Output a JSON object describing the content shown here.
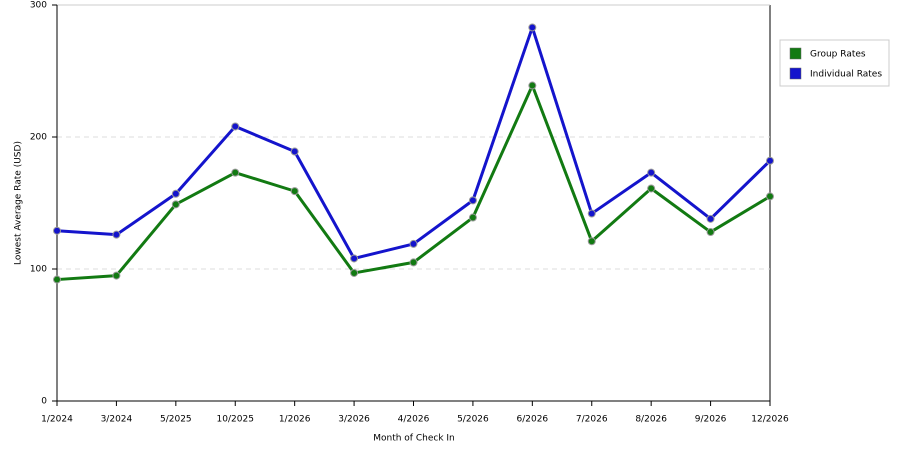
{
  "chart_data": {
    "type": "line",
    "x_label": "Month of Check In",
    "y_label": "Lowest Average Rate (USD)",
    "categories": [
      "1/2024",
      "3/2024",
      "5/2025",
      "10/2025",
      "1/2026",
      "3/2026",
      "4/2026",
      "5/2026",
      "6/2026",
      "7/2026",
      "8/2026",
      "9/2026",
      "12/2026"
    ],
    "series": [
      {
        "name": "Group Rates",
        "color": "#127a12",
        "values": [
          92,
          95,
          149,
          173,
          159,
          97,
          105,
          139,
          239,
          121,
          161,
          128,
          155
        ]
      },
      {
        "name": "Individual Rates",
        "color": "#1414cc",
        "values": [
          129,
          126,
          157,
          208,
          189,
          108,
          119,
          152,
          283,
          142,
          173,
          138,
          182
        ]
      }
    ],
    "ylim": [
      0,
      300
    ],
    "yticks": [
      0,
      100,
      200,
      300
    ],
    "grid": true,
    "legend": "right"
  }
}
